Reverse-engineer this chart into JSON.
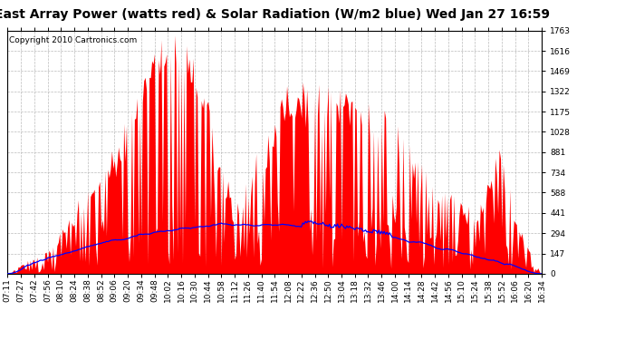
{
  "title": "East Array Power (watts red) & Solar Radiation (W/m2 blue) Wed Jan 27 16:59",
  "copyright_text": "Copyright 2010 Cartronics.com",
  "y_max": 1762.7,
  "y_min": 0.0,
  "y_ticks": [
    0.0,
    146.9,
    293.8,
    440.7,
    587.6,
    734.5,
    881.4,
    1028.3,
    1175.2,
    1322.1,
    1468.9,
    1615.8,
    1762.7
  ],
  "x_labels": [
    "07:11",
    "07:27",
    "07:42",
    "07:56",
    "08:10",
    "08:24",
    "08:38",
    "08:52",
    "09:06",
    "09:20",
    "09:34",
    "09:48",
    "10:02",
    "10:16",
    "10:30",
    "10:44",
    "10:58",
    "11:12",
    "11:26",
    "11:40",
    "11:54",
    "12:08",
    "12:22",
    "12:36",
    "12:50",
    "13:04",
    "13:18",
    "13:32",
    "13:46",
    "14:00",
    "14:14",
    "14:28",
    "14:42",
    "14:56",
    "15:10",
    "15:24",
    "15:38",
    "15:52",
    "16:06",
    "16:20",
    "16:34"
  ],
  "power_color": "#FF0000",
  "solar_color": "#0000FF",
  "background_color": "#FFFFFF",
  "grid_color": "#BBBBBB",
  "title_fontsize": 10,
  "tick_fontsize": 6.5,
  "copyright_fontsize": 6.5,
  "fig_width": 6.9,
  "fig_height": 3.75,
  "dpi": 100
}
